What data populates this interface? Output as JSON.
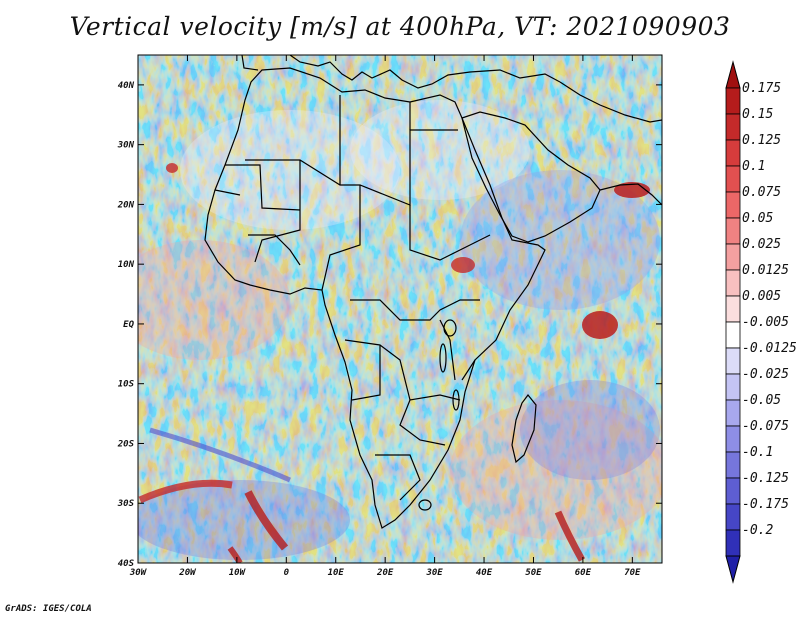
{
  "title": "Vertical velocity [m/s] at 400hPa, VT: 2021090903",
  "credit": "GrADS: IGES/COLA",
  "map": {
    "lon_range": [
      -30,
      76
    ],
    "lat_range": [
      -40,
      45
    ],
    "lon_ticks": [
      {
        "value": -30,
        "label": "30W"
      },
      {
        "value": -20,
        "label": "20W"
      },
      {
        "value": -10,
        "label": "10W"
      },
      {
        "value": 0,
        "label": "0"
      },
      {
        "value": 10,
        "label": "10E"
      },
      {
        "value": 20,
        "label": "20E"
      },
      {
        "value": 30,
        "label": "30E"
      },
      {
        "value": 40,
        "label": "40E"
      },
      {
        "value": 50,
        "label": "50E"
      },
      {
        "value": 60,
        "label": "60E"
      },
      {
        "value": 70,
        "label": "70E"
      }
    ],
    "lat_ticks": [
      {
        "value": 40,
        "label": "40N"
      },
      {
        "value": 30,
        "label": "30N"
      },
      {
        "value": 20,
        "label": "20N"
      },
      {
        "value": 10,
        "label": "10N"
      },
      {
        "value": 0,
        "label": "EQ"
      },
      {
        "value": -10,
        "label": "10S"
      },
      {
        "value": -20,
        "label": "20S"
      },
      {
        "value": -30,
        "label": "30S"
      },
      {
        "value": -40,
        "label": "40S"
      }
    ]
  },
  "colorbar": {
    "levels": [
      {
        "label": "0.175",
        "color": "#b51c1c"
      },
      {
        "label": "0.15",
        "color": "#c42a2a"
      },
      {
        "label": "0.125",
        "color": "#d63c3c"
      },
      {
        "label": "0.1",
        "color": "#e25050"
      },
      {
        "label": "0.075",
        "color": "#ec6767"
      },
      {
        "label": "0.05",
        "color": "#f08282"
      },
      {
        "label": "0.025",
        "color": "#f4a0a0"
      },
      {
        "label": "0.0125",
        "color": "#f8c0c0"
      },
      {
        "label": "0.005",
        "color": "#fbdede"
      },
      {
        "label": "-0.005",
        "color": "#ffffff"
      },
      {
        "label": "-0.0125",
        "color": "#dcdcf8"
      },
      {
        "label": "-0.025",
        "color": "#c4c4f4"
      },
      {
        "label": "-0.05",
        "color": "#a8a8ee"
      },
      {
        "label": "-0.075",
        "color": "#8e8ee6"
      },
      {
        "label": "-0.1",
        "color": "#7676dc"
      },
      {
        "label": "-0.125",
        "color": "#5e5ed2"
      },
      {
        "label": "-0.175",
        "color": "#4646c6"
      },
      {
        "label": "-0.2",
        "color": "#3030b8"
      }
    ],
    "top_triangle_color": "#a01010",
    "bottom_triangle_color": "#2020a8"
  }
}
